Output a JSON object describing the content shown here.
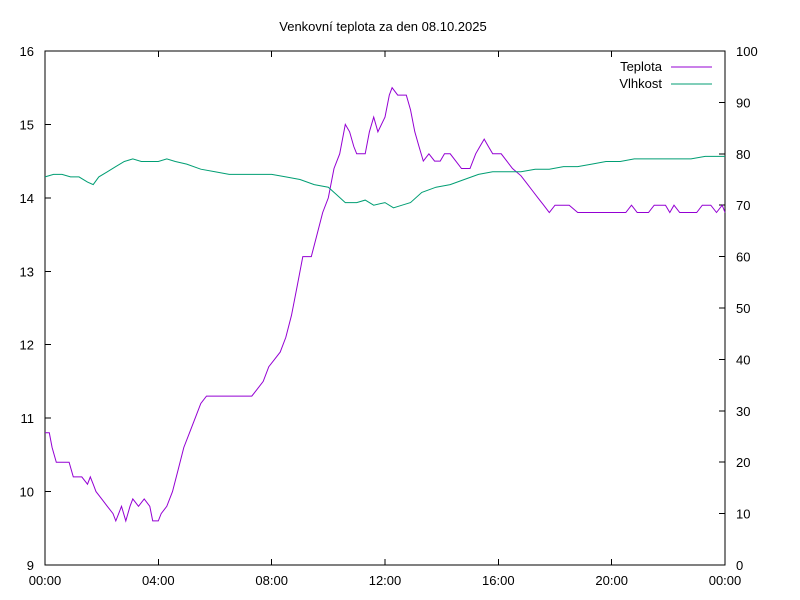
{
  "chart_data": {
    "type": "line",
    "title": "Venkovní teplota za den 08.10.2025",
    "x_ticks": [
      "00:00",
      "04:00",
      "08:00",
      "12:00",
      "16:00",
      "20:00",
      "00:00"
    ],
    "x_range_hours": [
      0,
      24
    ],
    "y_left_ticks": [
      "9",
      "10",
      "11",
      "12",
      "13",
      "14",
      "15",
      "16"
    ],
    "y_left_range": [
      9,
      16
    ],
    "y_right_ticks": [
      "0",
      "10",
      "20",
      "30",
      "40",
      "50",
      "60",
      "70",
      "80",
      "90",
      "100"
    ],
    "y_right_range": [
      0,
      100
    ],
    "grid": false,
    "legend_position": "top-right",
    "series": [
      {
        "name": "Teplota",
        "axis": "left",
        "color": "#9400d3",
        "points": [
          [
            0.0,
            10.8
          ],
          [
            0.15,
            10.8
          ],
          [
            0.25,
            10.6
          ],
          [
            0.4,
            10.4
          ],
          [
            0.6,
            10.4
          ],
          [
            0.85,
            10.4
          ],
          [
            1.0,
            10.2
          ],
          [
            1.3,
            10.2
          ],
          [
            1.5,
            10.1
          ],
          [
            1.6,
            10.2
          ],
          [
            1.7,
            10.1
          ],
          [
            1.8,
            10.0
          ],
          [
            2.0,
            9.9
          ],
          [
            2.2,
            9.8
          ],
          [
            2.4,
            9.7
          ],
          [
            2.5,
            9.6
          ],
          [
            2.6,
            9.7
          ],
          [
            2.7,
            9.8
          ],
          [
            2.85,
            9.6
          ],
          [
            3.0,
            9.8
          ],
          [
            3.1,
            9.9
          ],
          [
            3.3,
            9.8
          ],
          [
            3.5,
            9.9
          ],
          [
            3.7,
            9.8
          ],
          [
            3.8,
            9.6
          ],
          [
            4.0,
            9.6
          ],
          [
            4.1,
            9.7
          ],
          [
            4.3,
            9.8
          ],
          [
            4.5,
            10.0
          ],
          [
            4.7,
            10.3
          ],
          [
            4.9,
            10.6
          ],
          [
            5.1,
            10.8
          ],
          [
            5.3,
            11.0
          ],
          [
            5.5,
            11.2
          ],
          [
            5.7,
            11.3
          ],
          [
            6.0,
            11.3
          ],
          [
            6.5,
            11.3
          ],
          [
            7.0,
            11.3
          ],
          [
            7.3,
            11.3
          ],
          [
            7.5,
            11.4
          ],
          [
            7.7,
            11.5
          ],
          [
            7.9,
            11.7
          ],
          [
            8.1,
            11.8
          ],
          [
            8.3,
            11.9
          ],
          [
            8.5,
            12.1
          ],
          [
            8.7,
            12.4
          ],
          [
            8.9,
            12.8
          ],
          [
            9.0,
            13.0
          ],
          [
            9.1,
            13.2
          ],
          [
            9.4,
            13.2
          ],
          [
            9.6,
            13.5
          ],
          [
            9.8,
            13.8
          ],
          [
            10.0,
            14.0
          ],
          [
            10.2,
            14.4
          ],
          [
            10.4,
            14.6
          ],
          [
            10.6,
            15.0
          ],
          [
            10.75,
            14.9
          ],
          [
            10.9,
            14.7
          ],
          [
            11.0,
            14.6
          ],
          [
            11.3,
            14.6
          ],
          [
            11.45,
            14.9
          ],
          [
            11.6,
            15.1
          ],
          [
            11.75,
            14.9
          ],
          [
            12.0,
            15.1
          ],
          [
            12.15,
            15.4
          ],
          [
            12.25,
            15.5
          ],
          [
            12.45,
            15.4
          ],
          [
            12.75,
            15.4
          ],
          [
            12.9,
            15.2
          ],
          [
            13.05,
            14.9
          ],
          [
            13.2,
            14.7
          ],
          [
            13.35,
            14.5
          ],
          [
            13.55,
            14.6
          ],
          [
            13.75,
            14.5
          ],
          [
            13.95,
            14.5
          ],
          [
            14.1,
            14.6
          ],
          [
            14.3,
            14.6
          ],
          [
            14.5,
            14.5
          ],
          [
            14.7,
            14.4
          ],
          [
            15.0,
            14.4
          ],
          [
            15.2,
            14.6
          ],
          [
            15.35,
            14.7
          ],
          [
            15.5,
            14.8
          ],
          [
            15.65,
            14.7
          ],
          [
            15.8,
            14.6
          ],
          [
            16.1,
            14.6
          ],
          [
            16.3,
            14.5
          ],
          [
            16.5,
            14.4
          ],
          [
            16.8,
            14.3
          ],
          [
            17.0,
            14.2
          ],
          [
            17.2,
            14.1
          ],
          [
            17.4,
            14.0
          ],
          [
            17.6,
            13.9
          ],
          [
            17.8,
            13.8
          ],
          [
            18.0,
            13.9
          ],
          [
            18.5,
            13.9
          ],
          [
            18.8,
            13.8
          ],
          [
            19.5,
            13.8
          ],
          [
            20.0,
            13.8
          ],
          [
            20.5,
            13.8
          ],
          [
            20.7,
            13.9
          ],
          [
            20.9,
            13.8
          ],
          [
            21.3,
            13.8
          ],
          [
            21.5,
            13.9
          ],
          [
            21.9,
            13.9
          ],
          [
            22.05,
            13.8
          ],
          [
            22.2,
            13.9
          ],
          [
            22.4,
            13.8
          ],
          [
            23.0,
            13.8
          ],
          [
            23.2,
            13.9
          ],
          [
            23.5,
            13.9
          ],
          [
            23.7,
            13.8
          ],
          [
            23.9,
            13.9
          ],
          [
            24.0,
            13.8
          ]
        ]
      },
      {
        "name": "Vlhkost",
        "axis": "right",
        "color": "#009e73",
        "points": [
          [
            0.0,
            75.5
          ],
          [
            0.3,
            76.0
          ],
          [
            0.6,
            76.0
          ],
          [
            0.9,
            75.5
          ],
          [
            1.2,
            75.5
          ],
          [
            1.5,
            74.5
          ],
          [
            1.7,
            74.0
          ],
          [
            1.9,
            75.5
          ],
          [
            2.2,
            76.5
          ],
          [
            2.5,
            77.5
          ],
          [
            2.8,
            78.5
          ],
          [
            3.1,
            79.0
          ],
          [
            3.4,
            78.5
          ],
          [
            3.7,
            78.5
          ],
          [
            4.0,
            78.5
          ],
          [
            4.3,
            79.0
          ],
          [
            4.6,
            78.5
          ],
          [
            5.0,
            78.0
          ],
          [
            5.5,
            77.0
          ],
          [
            6.0,
            76.5
          ],
          [
            6.5,
            76.0
          ],
          [
            7.0,
            76.0
          ],
          [
            7.5,
            76.0
          ],
          [
            8.0,
            76.0
          ],
          [
            8.5,
            75.5
          ],
          [
            9.0,
            75.0
          ],
          [
            9.5,
            74.0
          ],
          [
            10.0,
            73.5
          ],
          [
            10.3,
            72.0
          ],
          [
            10.6,
            70.5
          ],
          [
            11.0,
            70.5
          ],
          [
            11.3,
            71.0
          ],
          [
            11.6,
            70.0
          ],
          [
            12.0,
            70.5
          ],
          [
            12.3,
            69.5
          ],
          [
            12.6,
            70.0
          ],
          [
            12.9,
            70.5
          ],
          [
            13.3,
            72.5
          ],
          [
            13.8,
            73.5
          ],
          [
            14.3,
            74.0
          ],
          [
            14.8,
            75.0
          ],
          [
            15.3,
            76.0
          ],
          [
            15.8,
            76.5
          ],
          [
            16.3,
            76.5
          ],
          [
            16.8,
            76.5
          ],
          [
            17.3,
            77.0
          ],
          [
            17.8,
            77.0
          ],
          [
            18.3,
            77.5
          ],
          [
            18.8,
            77.5
          ],
          [
            19.3,
            78.0
          ],
          [
            19.8,
            78.5
          ],
          [
            20.3,
            78.5
          ],
          [
            20.8,
            79.0
          ],
          [
            21.3,
            79.0
          ],
          [
            21.8,
            79.0
          ],
          [
            22.3,
            79.0
          ],
          [
            22.8,
            79.0
          ],
          [
            23.3,
            79.5
          ],
          [
            23.7,
            79.5
          ],
          [
            24.0,
            79.5
          ]
        ]
      }
    ]
  }
}
